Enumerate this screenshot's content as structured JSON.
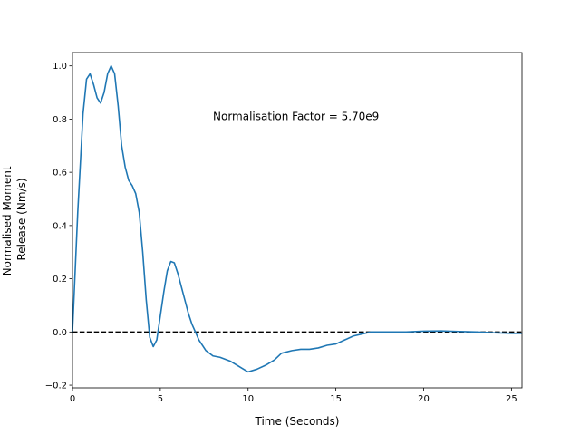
{
  "chart_data": {
    "type": "line",
    "title": "",
    "xlabel": "Time (Seconds)",
    "ylabel_lines": [
      "Normalised Moment",
      "Release (Nm/s)"
    ],
    "xlim": [
      0,
      25.6
    ],
    "ylim": [
      -0.21,
      1.05
    ],
    "xticks": [
      0,
      5,
      10,
      15,
      20,
      25
    ],
    "yticks": [
      -0.2,
      0.0,
      0.2,
      0.4,
      0.6,
      0.8,
      1.0
    ],
    "grid": false,
    "legend": "none",
    "annotation": {
      "text": "Normalisation Factor = 5.70e9",
      "x": 8.0,
      "y": 0.81
    },
    "reference_line": {
      "y": 0.0,
      "style": "dashed",
      "color": "#000000"
    },
    "series": [
      {
        "color": "#1f77b4",
        "x": [
          0,
          0.3,
          0.6,
          0.8,
          1.0,
          1.2,
          1.4,
          1.6,
          1.8,
          2.0,
          2.2,
          2.4,
          2.6,
          2.8,
          3.0,
          3.2,
          3.4,
          3.6,
          3.8,
          4.0,
          4.2,
          4.4,
          4.6,
          4.8,
          5.0,
          5.2,
          5.4,
          5.6,
          5.8,
          6.0,
          6.2,
          6.4,
          6.6,
          6.8,
          7.0,
          7.2,
          7.6,
          8.0,
          8.4,
          9.0,
          9.5,
          10.0,
          10.5,
          11.0,
          11.5,
          11.9,
          12.5,
          13.0,
          13.5,
          14.0,
          14.5,
          15.0,
          15.5,
          16.0,
          17.0,
          18.0,
          19.0,
          20.0,
          21.0,
          22.0,
          23.0,
          24.0,
          25.0,
          25.6
        ],
        "y": [
          0.0,
          0.45,
          0.82,
          0.95,
          0.97,
          0.93,
          0.88,
          0.86,
          0.9,
          0.97,
          1.0,
          0.97,
          0.85,
          0.7,
          0.62,
          0.57,
          0.55,
          0.52,
          0.45,
          0.3,
          0.12,
          -0.02,
          -0.055,
          -0.03,
          0.06,
          0.15,
          0.23,
          0.265,
          0.26,
          0.22,
          0.17,
          0.12,
          0.07,
          0.03,
          0.0,
          -0.03,
          -0.07,
          -0.09,
          -0.095,
          -0.11,
          -0.13,
          -0.15,
          -0.14,
          -0.125,
          -0.105,
          -0.08,
          -0.07,
          -0.065,
          -0.065,
          -0.06,
          -0.05,
          -0.045,
          -0.03,
          -0.015,
          0.0,
          0.0,
          0.0,
          0.003,
          0.004,
          0.002,
          0.0,
          -0.003,
          -0.005,
          -0.005
        ]
      }
    ]
  }
}
